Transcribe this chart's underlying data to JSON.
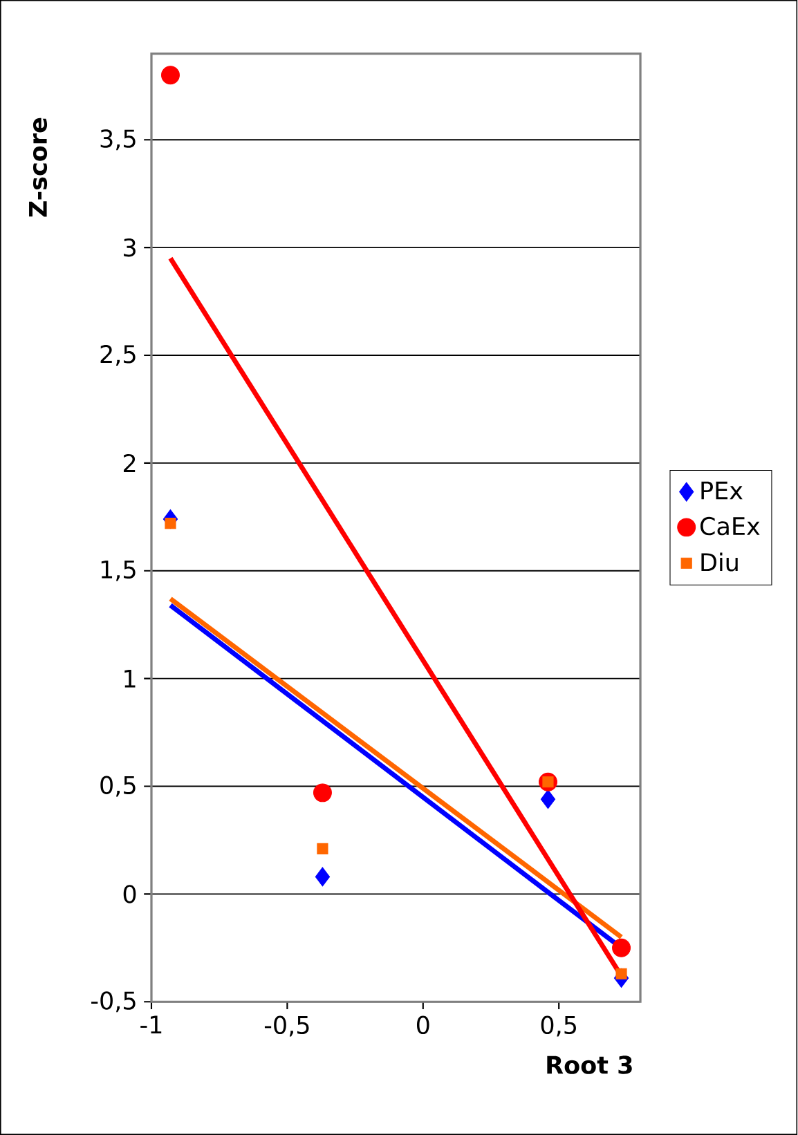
{
  "chart_data": {
    "type": "scatter",
    "xlabel": "Root 3",
    "ylabel": "Z-score",
    "xlim": [
      -1,
      0.8
    ],
    "ylim": [
      -0.5,
      3.9
    ],
    "xticks": [
      -1,
      {
        "value": -0.5,
        "label": "-0,5"
      },
      0,
      {
        "value": 0.5,
        "label": "0,5"
      }
    ],
    "yticks": [
      {
        "value": -0.5,
        "label": "-0,5"
      },
      0,
      {
        "value": 0.5,
        "label": "0,5"
      },
      1,
      {
        "value": 1.5,
        "label": "1,5"
      },
      2,
      {
        "value": 2.5,
        "label": "2,5"
      },
      3,
      {
        "value": 3.5,
        "label": "3,5"
      }
    ],
    "grid": "y",
    "legend": "right",
    "series": [
      {
        "name": "PEx",
        "marker": "diamond",
        "color": "#0000ff",
        "x": [
          -0.93,
          -0.37,
          0.46,
          0.73
        ],
        "values": [
          1.74,
          0.08,
          0.44,
          -0.39
        ]
      },
      {
        "name": "CaEx",
        "marker": "circle",
        "color": "#ff0000",
        "x": [
          -0.93,
          -0.37,
          0.46,
          0.73
        ],
        "values": [
          3.8,
          0.47,
          0.52,
          -0.25
        ]
      },
      {
        "name": "Diu",
        "marker": "square",
        "color": "#ff6600",
        "x": [
          -0.93,
          -0.37,
          0.46,
          0.73
        ],
        "values": [
          1.72,
          0.21,
          0.52,
          -0.37
        ]
      },
      {
        "type": "line",
        "color": "#0000ff",
        "x": [
          -0.93,
          0.73
        ],
        "values": [
          1.34,
          -0.25
        ]
      },
      {
        "type": "line",
        "color": "#ff6600",
        "x": [
          -0.93,
          0.73
        ],
        "values": [
          1.37,
          -0.2
        ]
      },
      {
        "type": "line",
        "color": "#ff0000",
        "x": [
          -0.93,
          0.73
        ],
        "values": [
          2.95,
          -0.38
        ]
      }
    ]
  }
}
